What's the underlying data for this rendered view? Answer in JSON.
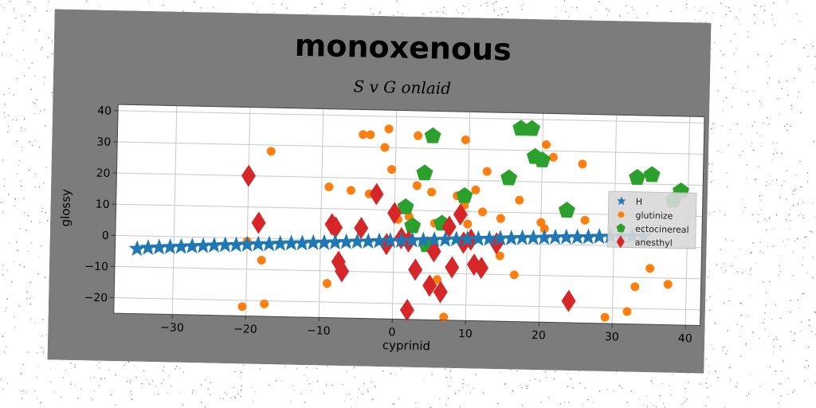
{
  "chart_data": {
    "type": "scatter",
    "title": "monoxenous",
    "subtitle": "S v G onlaid",
    "xlabel": "cyprinid",
    "ylabel": "glossy",
    "xlim": [
      -38,
      42
    ],
    "ylim": [
      -25,
      42
    ],
    "xticks": [
      -30,
      -20,
      -10,
      0,
      10,
      20,
      30,
      40
    ],
    "yticks": [
      -20,
      -10,
      0,
      10,
      20,
      30,
      40
    ],
    "grid": true,
    "legend_position": "right",
    "series": [
      {
        "name": "H",
        "marker": "star",
        "color": "#1f77b4",
        "points": [
          [
            -35,
            -4.2
          ],
          [
            -33.5,
            -3.8
          ],
          [
            -32,
            -3.6
          ],
          [
            -30.5,
            -3.4
          ],
          [
            -29,
            -3.2
          ],
          [
            -27.5,
            -3.0
          ],
          [
            -26,
            -2.8
          ],
          [
            -24.5,
            -2.6
          ],
          [
            -23,
            -2.4
          ],
          [
            -21.5,
            -2.3
          ],
          [
            -20,
            -2.1
          ],
          [
            -18.5,
            -1.9
          ],
          [
            -17,
            -1.8
          ],
          [
            -15.5,
            -1.6
          ],
          [
            -14,
            -1.4
          ],
          [
            -12.5,
            -1.3
          ],
          [
            -11,
            -1.1
          ],
          [
            -9.5,
            -1.0
          ],
          [
            -8,
            -0.8
          ],
          [
            -6.5,
            -0.6
          ],
          [
            -5,
            -0.4
          ],
          [
            -3.5,
            -0.3
          ],
          [
            -2,
            -0.1
          ],
          [
            -0.5,
            0.1
          ],
          [
            1,
            0.2
          ],
          [
            2.5,
            0.4
          ],
          [
            4,
            0.5
          ],
          [
            5.5,
            0.7
          ],
          [
            7,
            0.8
          ],
          [
            8.5,
            1.0
          ],
          [
            10,
            1.1
          ],
          [
            11.5,
            1.3
          ],
          [
            13,
            1.4
          ],
          [
            14.5,
            1.6
          ],
          [
            16,
            1.7
          ],
          [
            17.5,
            1.9
          ],
          [
            19,
            2.0
          ],
          [
            20.5,
            2.1
          ],
          [
            22,
            2.3
          ],
          [
            23.5,
            2.4
          ],
          [
            25,
            2.5
          ],
          [
            26.5,
            2.6
          ],
          [
            28,
            2.8
          ],
          [
            29.5,
            2.9
          ],
          [
            31,
            3.0
          ],
          [
            32.5,
            3.1
          ],
          [
            34,
            3.2
          ]
        ]
      },
      {
        "name": "glutinize",
        "marker": "circle",
        "color": "#ff7f0e",
        "points": [
          [
            -4.5,
            34
          ],
          [
            -3.5,
            34
          ],
          [
            -1.5,
            30
          ],
          [
            -1,
            36
          ],
          [
            -0.5,
            23
          ],
          [
            3,
            34
          ],
          [
            9.5,
            33
          ],
          [
            -17,
            28
          ],
          [
            -9,
            17
          ],
          [
            -6,
            16
          ],
          [
            -3.5,
            15
          ],
          [
            1.5,
            12
          ],
          [
            3,
            18
          ],
          [
            5,
            16
          ],
          [
            8.5,
            15
          ],
          [
            9.5,
            12
          ],
          [
            12,
            10
          ],
          [
            11,
            17
          ],
          [
            12.5,
            23
          ],
          [
            14.5,
            8
          ],
          [
            14.5,
            -4
          ],
          [
            16.5,
            -10
          ],
          [
            17,
            14
          ],
          [
            20,
            7
          ],
          [
            20.5,
            5
          ],
          [
            20.5,
            32
          ],
          [
            21.5,
            28
          ],
          [
            25.5,
            26
          ],
          [
            26,
            8
          ],
          [
            35,
            -7
          ],
          [
            33,
            -13
          ],
          [
            37.5,
            -12
          ],
          [
            32,
            -21
          ],
          [
            29,
            -23
          ],
          [
            7,
            -24
          ],
          [
            6,
            -12
          ],
          [
            -17.5,
            -21
          ],
          [
            -20.5,
            -22
          ],
          [
            -9,
            -14
          ],
          [
            -20,
            -1
          ],
          [
            -18,
            -7
          ],
          [
            10,
            6
          ],
          [
            5.5,
            6
          ],
          [
            2,
            8
          ],
          [
            0.5,
            7
          ]
        ]
      },
      {
        "name": "ectocinereal",
        "marker": "pentagon",
        "color": "#2ca02c",
        "points": [
          [
            5,
            34
          ],
          [
            17,
            37
          ],
          [
            18.5,
            37
          ],
          [
            19,
            28
          ],
          [
            20,
            27
          ],
          [
            15.5,
            21
          ],
          [
            4,
            22
          ],
          [
            9.5,
            15
          ],
          [
            1.5,
            11
          ],
          [
            2.5,
            5
          ],
          [
            4.5,
            -1
          ],
          [
            6.5,
            6
          ],
          [
            23.5,
            11
          ],
          [
            33,
            22
          ],
          [
            35,
            23
          ],
          [
            39,
            18
          ],
          [
            38,
            15
          ]
        ]
      },
      {
        "name": "anesthyl",
        "marker": "diamond",
        "color": "#d62728",
        "points": [
          [
            -20,
            20
          ],
          [
            -18.5,
            5
          ],
          [
            -8.5,
            5
          ],
          [
            -8,
            4
          ],
          [
            -4.5,
            4
          ],
          [
            -2.5,
            15
          ],
          [
            0,
            9
          ],
          [
            -1,
            -1
          ],
          [
            1,
            1
          ],
          [
            2,
            0
          ],
          [
            3,
            -9
          ],
          [
            2,
            -22
          ],
          [
            5,
            -14
          ],
          [
            5.5,
            -3
          ],
          [
            6.5,
            -16
          ],
          [
            7.5,
            5
          ],
          [
            8,
            -8
          ],
          [
            9,
            9
          ],
          [
            9.5,
            0
          ],
          [
            10.5,
            1
          ],
          [
            11,
            -7
          ],
          [
            12,
            -8
          ],
          [
            14,
            0
          ],
          [
            24,
            -18
          ],
          [
            -7.5,
            -7
          ],
          [
            -7,
            -10
          ]
        ]
      }
    ]
  }
}
